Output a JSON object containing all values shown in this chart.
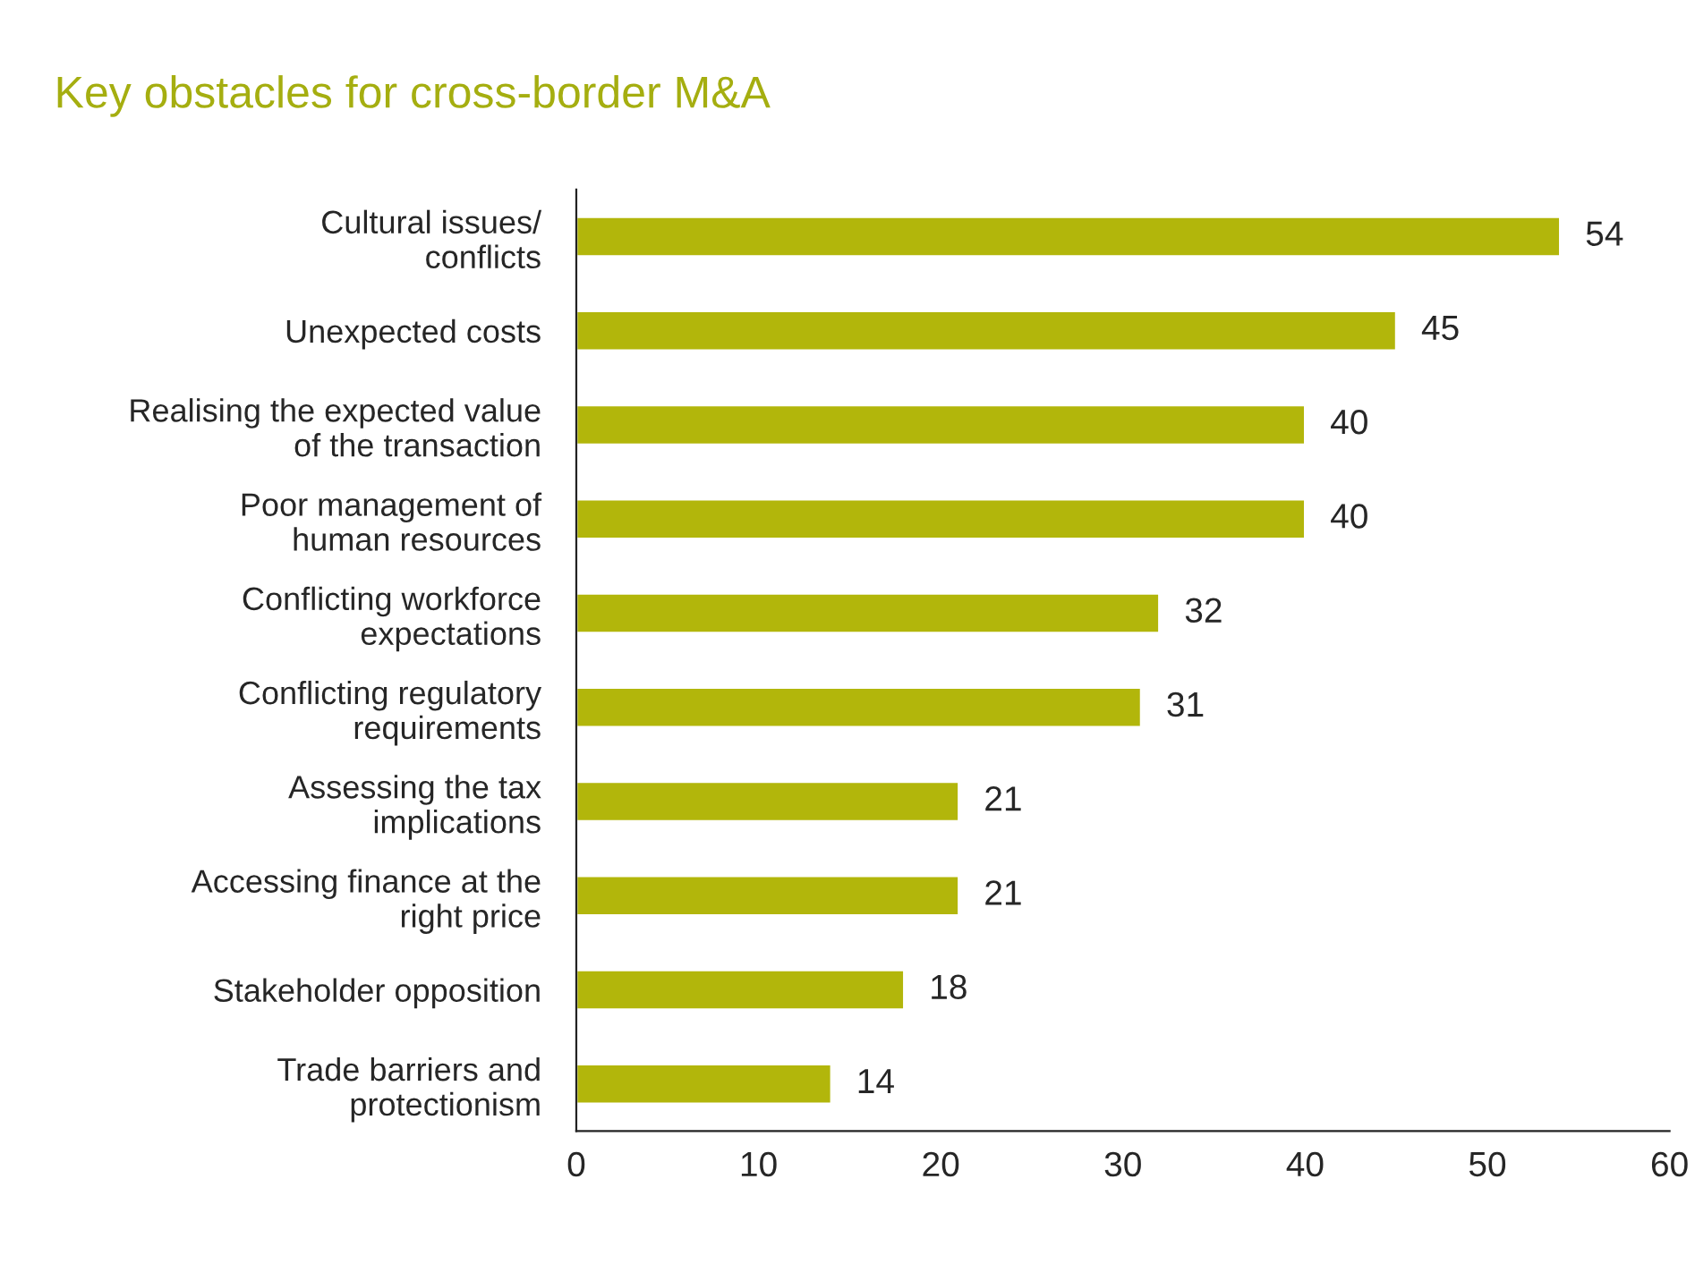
{
  "chart_data": {
    "type": "bar",
    "orientation": "horizontal",
    "title": "Key obstacles for cross-border M&A",
    "categories": [
      "Cultural issues/\nconflicts",
      "Unexpected costs",
      "Realising the expected value\nof the transaction",
      "Poor management of\nhuman resources",
      "Conflicting workforce\nexpectations",
      "Conflicting regulatory\nrequirements",
      "Assessing the tax\nimplications",
      "Accessing finance at the\nright price",
      "Stakeholder opposition",
      "Trade barriers and\nprotectionism"
    ],
    "values": [
      54,
      45,
      40,
      40,
      32,
      31,
      21,
      21,
      18,
      14
    ],
    "color": "#b2b60b",
    "xlim": [
      0,
      60
    ],
    "xticks": [
      0,
      10,
      20,
      30,
      40,
      50,
      60
    ],
    "data_labels": true,
    "grid": false,
    "legend": false
  }
}
